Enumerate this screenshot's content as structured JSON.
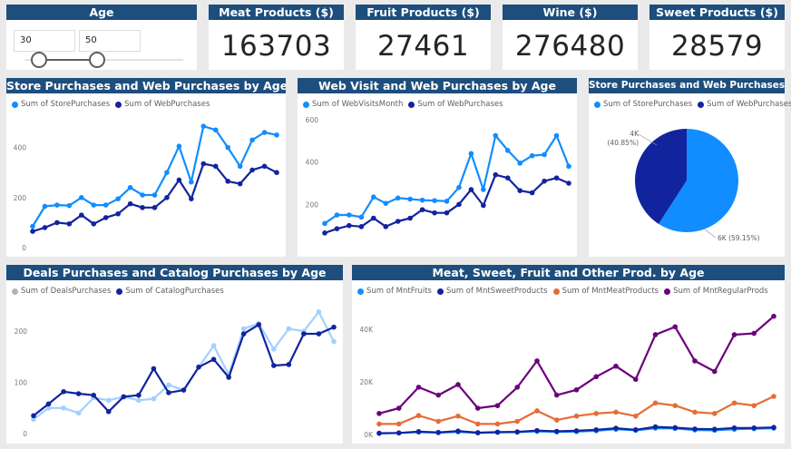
{
  "slicer": {
    "title": "Age",
    "min": "30",
    "max": "50"
  },
  "kpis": [
    {
      "title": "Meat Products ($)",
      "value": "163703"
    },
    {
      "title": "Fruit Products ($)",
      "value": "27461"
    },
    {
      "title": "Wine ($)",
      "value": "276480"
    },
    {
      "title": "Sweet Products ($)",
      "value": "28579"
    }
  ],
  "charts": {
    "store_web": {
      "title": "Store Purchases and Web Purchases by Age",
      "legend": [
        "Sum of StorePurchases",
        "Sum of WebPurchases"
      ],
      "colors": [
        "#118dff",
        "#12239e"
      ]
    },
    "visit_web": {
      "title": "Web Visit and Web Purchases by Age",
      "legend": [
        "Sum of WebVisitsMonth",
        "Sum of WebPurchases"
      ],
      "colors": [
        "#118dff",
        "#12239e"
      ]
    },
    "pie": {
      "title": "Store Purchases and Web Purchases",
      "legend": [
        "Sum of StorePurchases",
        "Sum of WebPurchases..."
      ],
      "colors": [
        "#118dff",
        "#12239e"
      ],
      "label_small": "4K",
      "label_small_pct": "(40.85%)",
      "label_large": "6K (59.15%)"
    },
    "deals_catalog": {
      "title": "Deals Purchases and Catalog Purchases by Age",
      "legend": [
        "Sum of DealsPurchases",
        "Sum of CatalogPurchases"
      ],
      "colors": [
        "#a0d1ff",
        "#12239e"
      ],
      "legend_colors": [
        "#b3b3b3",
        "#12239e"
      ]
    },
    "products": {
      "title": "Meat, Sweet, Fruit and Other Prod. by Age",
      "legend": [
        "Sum of MntFruits",
        "Sum of MntSweetProducts",
        "Sum of MntMeatProducts",
        "Sum of MntRegularProds"
      ],
      "colors": [
        "#118dff",
        "#12239e",
        "#e66c37",
        "#6b007b"
      ]
    }
  },
  "chart_data": [
    {
      "type": "line",
      "title": "Store Purchases and Web Purchases by Age",
      "ylim": [
        0,
        500
      ],
      "yticks": [
        "0",
        "200",
        "400"
      ],
      "series": [
        {
          "name": "Sum of StorePurchases",
          "values": [
            85,
            165,
            170,
            168,
            200,
            170,
            170,
            195,
            240,
            210,
            210,
            300,
            405,
            262,
            485,
            470,
            400,
            325,
            430,
            460,
            450
          ]
        },
        {
          "name": "Sum of WebPurchases",
          "values": [
            65,
            80,
            100,
            95,
            130,
            95,
            120,
            135,
            175,
            160,
            160,
            200,
            270,
            195,
            335,
            325,
            265,
            255,
            310,
            325,
            300
          ]
        }
      ]
    },
    {
      "type": "line",
      "title": "Web Visit and Web Purchases by Age",
      "ylim": [
        0,
        600
      ],
      "yticks": [
        "200",
        "400",
        "600"
      ],
      "series": [
        {
          "name": "Sum of WebVisitsMonth",
          "values": [
            110,
            150,
            150,
            140,
            235,
            205,
            230,
            225,
            220,
            218,
            215,
            280,
            440,
            270,
            525,
            455,
            395,
            430,
            435,
            525,
            380
          ]
        },
        {
          "name": "Sum of WebPurchases",
          "values": [
            65,
            85,
            100,
            95,
            135,
            95,
            120,
            135,
            175,
            160,
            160,
            200,
            270,
            195,
            340,
            325,
            265,
            255,
            310,
            325,
            300
          ]
        }
      ]
    },
    {
      "type": "pie",
      "title": "Store Purchases and Web Purchases",
      "series": [
        {
          "name": "Sum of StorePurchases",
          "values": [
            59.15
          ]
        },
        {
          "name": "Sum of WebPurchases",
          "values": [
            40.85
          ]
        }
      ]
    },
    {
      "type": "line",
      "title": "Deals Purchases and Catalog Purchases by Age",
      "ylim": [
        0,
        250
      ],
      "yticks": [
        "0",
        "100",
        "200"
      ],
      "series": [
        {
          "name": "Sum of DealsPurchases",
          "values": [
            28,
            50,
            50,
            40,
            70,
            65,
            72,
            65,
            68,
            95,
            85,
            130,
            172,
            115,
            205,
            215,
            165,
            205,
            200,
            238,
            180
          ]
        },
        {
          "name": "Sum of CatalogPurchases",
          "values": [
            35,
            58,
            82,
            78,
            75,
            43,
            72,
            75,
            127,
            80,
            85,
            130,
            145,
            110,
            195,
            213,
            133,
            135,
            195,
            195,
            208
          ]
        }
      ]
    },
    {
      "type": "line",
      "title": "Meat, Sweet, Fruit and Other Prod. by Age",
      "ylim": [
        0,
        48000
      ],
      "yticks": [
        "0K",
        "20K",
        "40K"
      ],
      "series": [
        {
          "name": "Sum of MntFruits",
          "values": [
            400,
            600,
            900,
            700,
            1000,
            600,
            800,
            900,
            1200,
            1000,
            1100,
            1400,
            2000,
            1600,
            2400,
            2300,
            1700,
            1600,
            2000,
            2200,
            2400
          ]
        },
        {
          "name": "Sum of MntSweetProducts",
          "values": [
            500,
            600,
            1100,
            800,
            1300,
            700,
            900,
            1000,
            1500,
            1200,
            1400,
            1800,
            2400,
            1800,
            2900,
            2600,
            2100,
            2000,
            2500,
            2500,
            2700
          ]
        },
        {
          "name": "Sum of MntMeatProducts",
          "values": [
            4000,
            4000,
            7200,
            5000,
            7000,
            4000,
            4000,
            5000,
            9000,
            5500,
            7000,
            8000,
            8500,
            7000,
            12000,
            11000,
            8500,
            8000,
            12000,
            11000,
            14500
          ]
        },
        {
          "name": "Sum of MntRegularProds",
          "values": [
            8000,
            10000,
            18000,
            15000,
            19000,
            10000,
            11000,
            18000,
            28000,
            15000,
            17000,
            22000,
            26000,
            21000,
            38000,
            41000,
            28000,
            24000,
            38000,
            38500,
            45000
          ]
        }
      ]
    }
  ]
}
